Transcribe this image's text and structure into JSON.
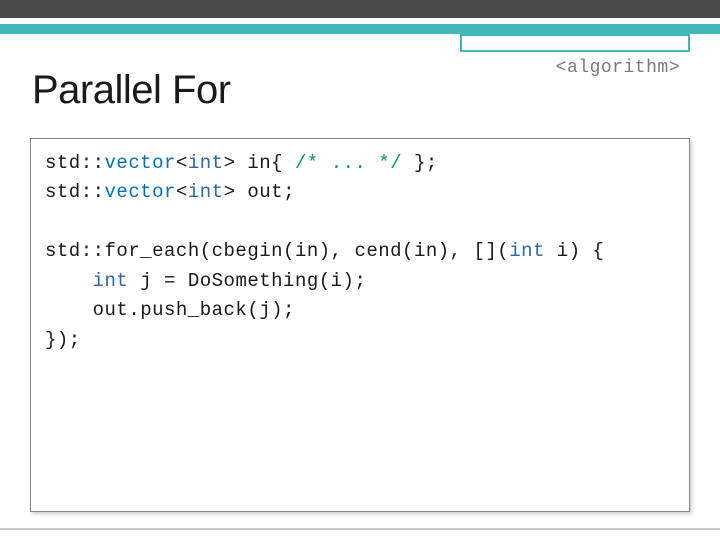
{
  "header_tag": "<algorithm>",
  "title": "Parallel For",
  "code": {
    "l1": {
      "ns": "std::",
      "type": "vector",
      "lt": "<",
      "int": "int",
      "gt": "> in{ ",
      "comment": "/* ... */",
      "end": " };"
    },
    "l2": {
      "ns": "std::",
      "type": "vector",
      "lt": "<",
      "int": "int",
      "gt": "> out;"
    },
    "l3": {
      "pre": "std::for_each(cbegin(in), cend(in), [](",
      "int": "int",
      "post": " i) {"
    },
    "l4": {
      "indent": "    ",
      "int": "int",
      "post": " j = DoSomething(i);"
    },
    "l5": "    out.push_back(j);",
    "l6": "});"
  },
  "colors": {
    "top_dark": "#4a4a4a",
    "teal": "#3eb8b8",
    "type": "#0070c0",
    "int": "#2a68b0",
    "comment": "#00a050",
    "text": "#1a1a1a",
    "tag": "#7a7a7a",
    "border": "#888888"
  }
}
